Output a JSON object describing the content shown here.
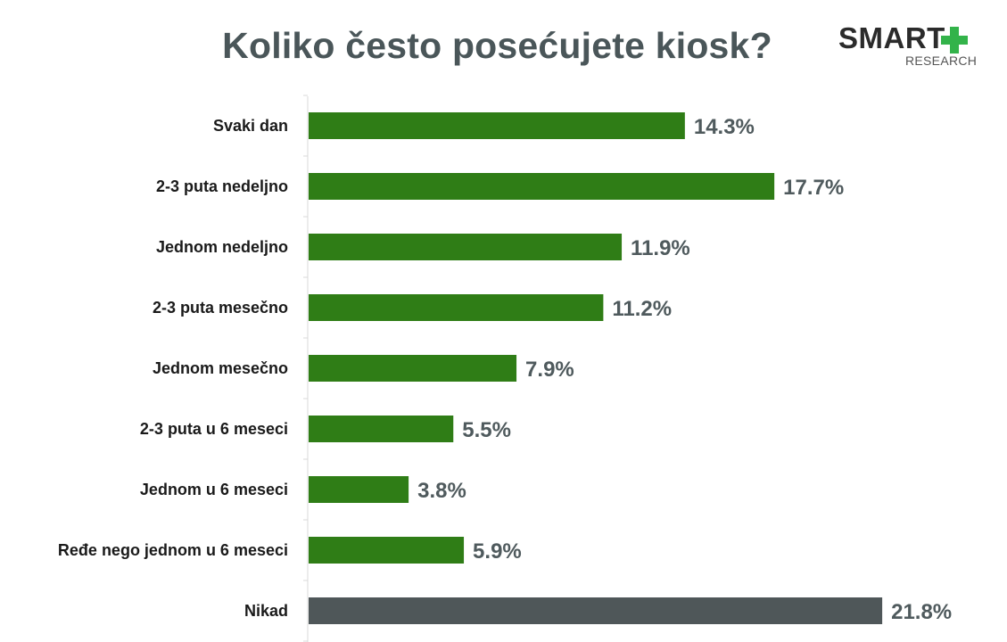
{
  "chart_data": {
    "type": "bar",
    "orientation": "horizontal",
    "title": "Koliko često posećujete kiosk?",
    "categories": [
      "Svaki dan",
      "2-3 puta nedeljno",
      "Jednom nedeljno",
      "2-3 puta mesečno",
      "Jednom mesečno",
      "2-3 puta u 6 meseci",
      "Jednom u 6 meseci",
      "Ređe nego jednom u 6 meseci",
      "Nikad"
    ],
    "values": [
      14.3,
      17.7,
      11.9,
      11.2,
      7.9,
      5.5,
      3.8,
      5.9,
      21.8
    ],
    "value_labels": [
      "14.3%",
      "17.7%",
      "11.9%",
      "11.2%",
      "7.9%",
      "5.5%",
      "3.8%",
      "5.9%",
      "21.8%"
    ],
    "unit": "%",
    "xlim": [
      0,
      22
    ],
    "grid": false,
    "legend": "none",
    "colors": {
      "bar": "#2f7d16",
      "bar_highlight": "#4f5759",
      "value_text": "#4f5a5d",
      "title_text": "#4a5659"
    },
    "highlight_index": 8
  },
  "logo": {
    "brand": "SMART",
    "sub": "RESEARCH",
    "icon": "plus-icon",
    "accent": "#33b34a"
  }
}
